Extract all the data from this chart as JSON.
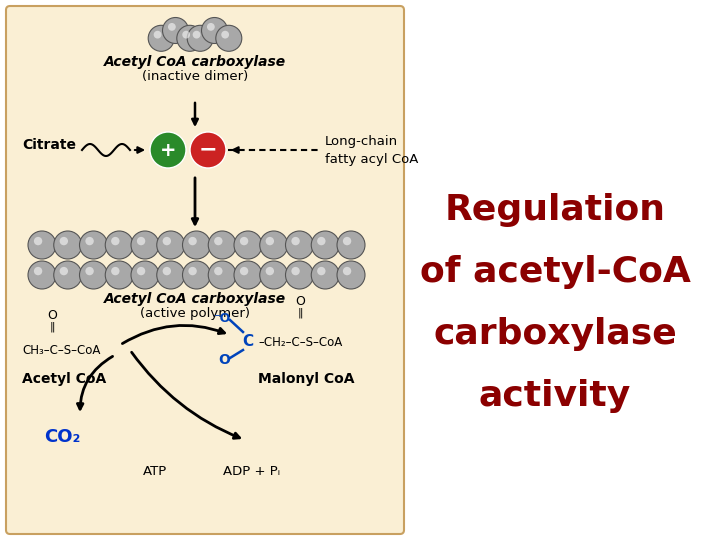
{
  "bg_color": "#faefd4",
  "white_bg": "#ffffff",
  "title_lines": [
    "Regulation",
    "of acetyl-CoA",
    "carboxylase",
    "activity"
  ],
  "title_color": "#8b0000",
  "title_fontsize": 26,
  "diagram_bg": "#faefd4",
  "diagram_border_color": "#c8a060",
  "green_circle_color": "#2a8a2a",
  "red_circle_color": "#cc2222",
  "blue_label_color": "#0033cc",
  "malonyl_c_color": "#0044bb",
  "sphere_fc": "#a8a8a8",
  "sphere_ec": "#555555"
}
